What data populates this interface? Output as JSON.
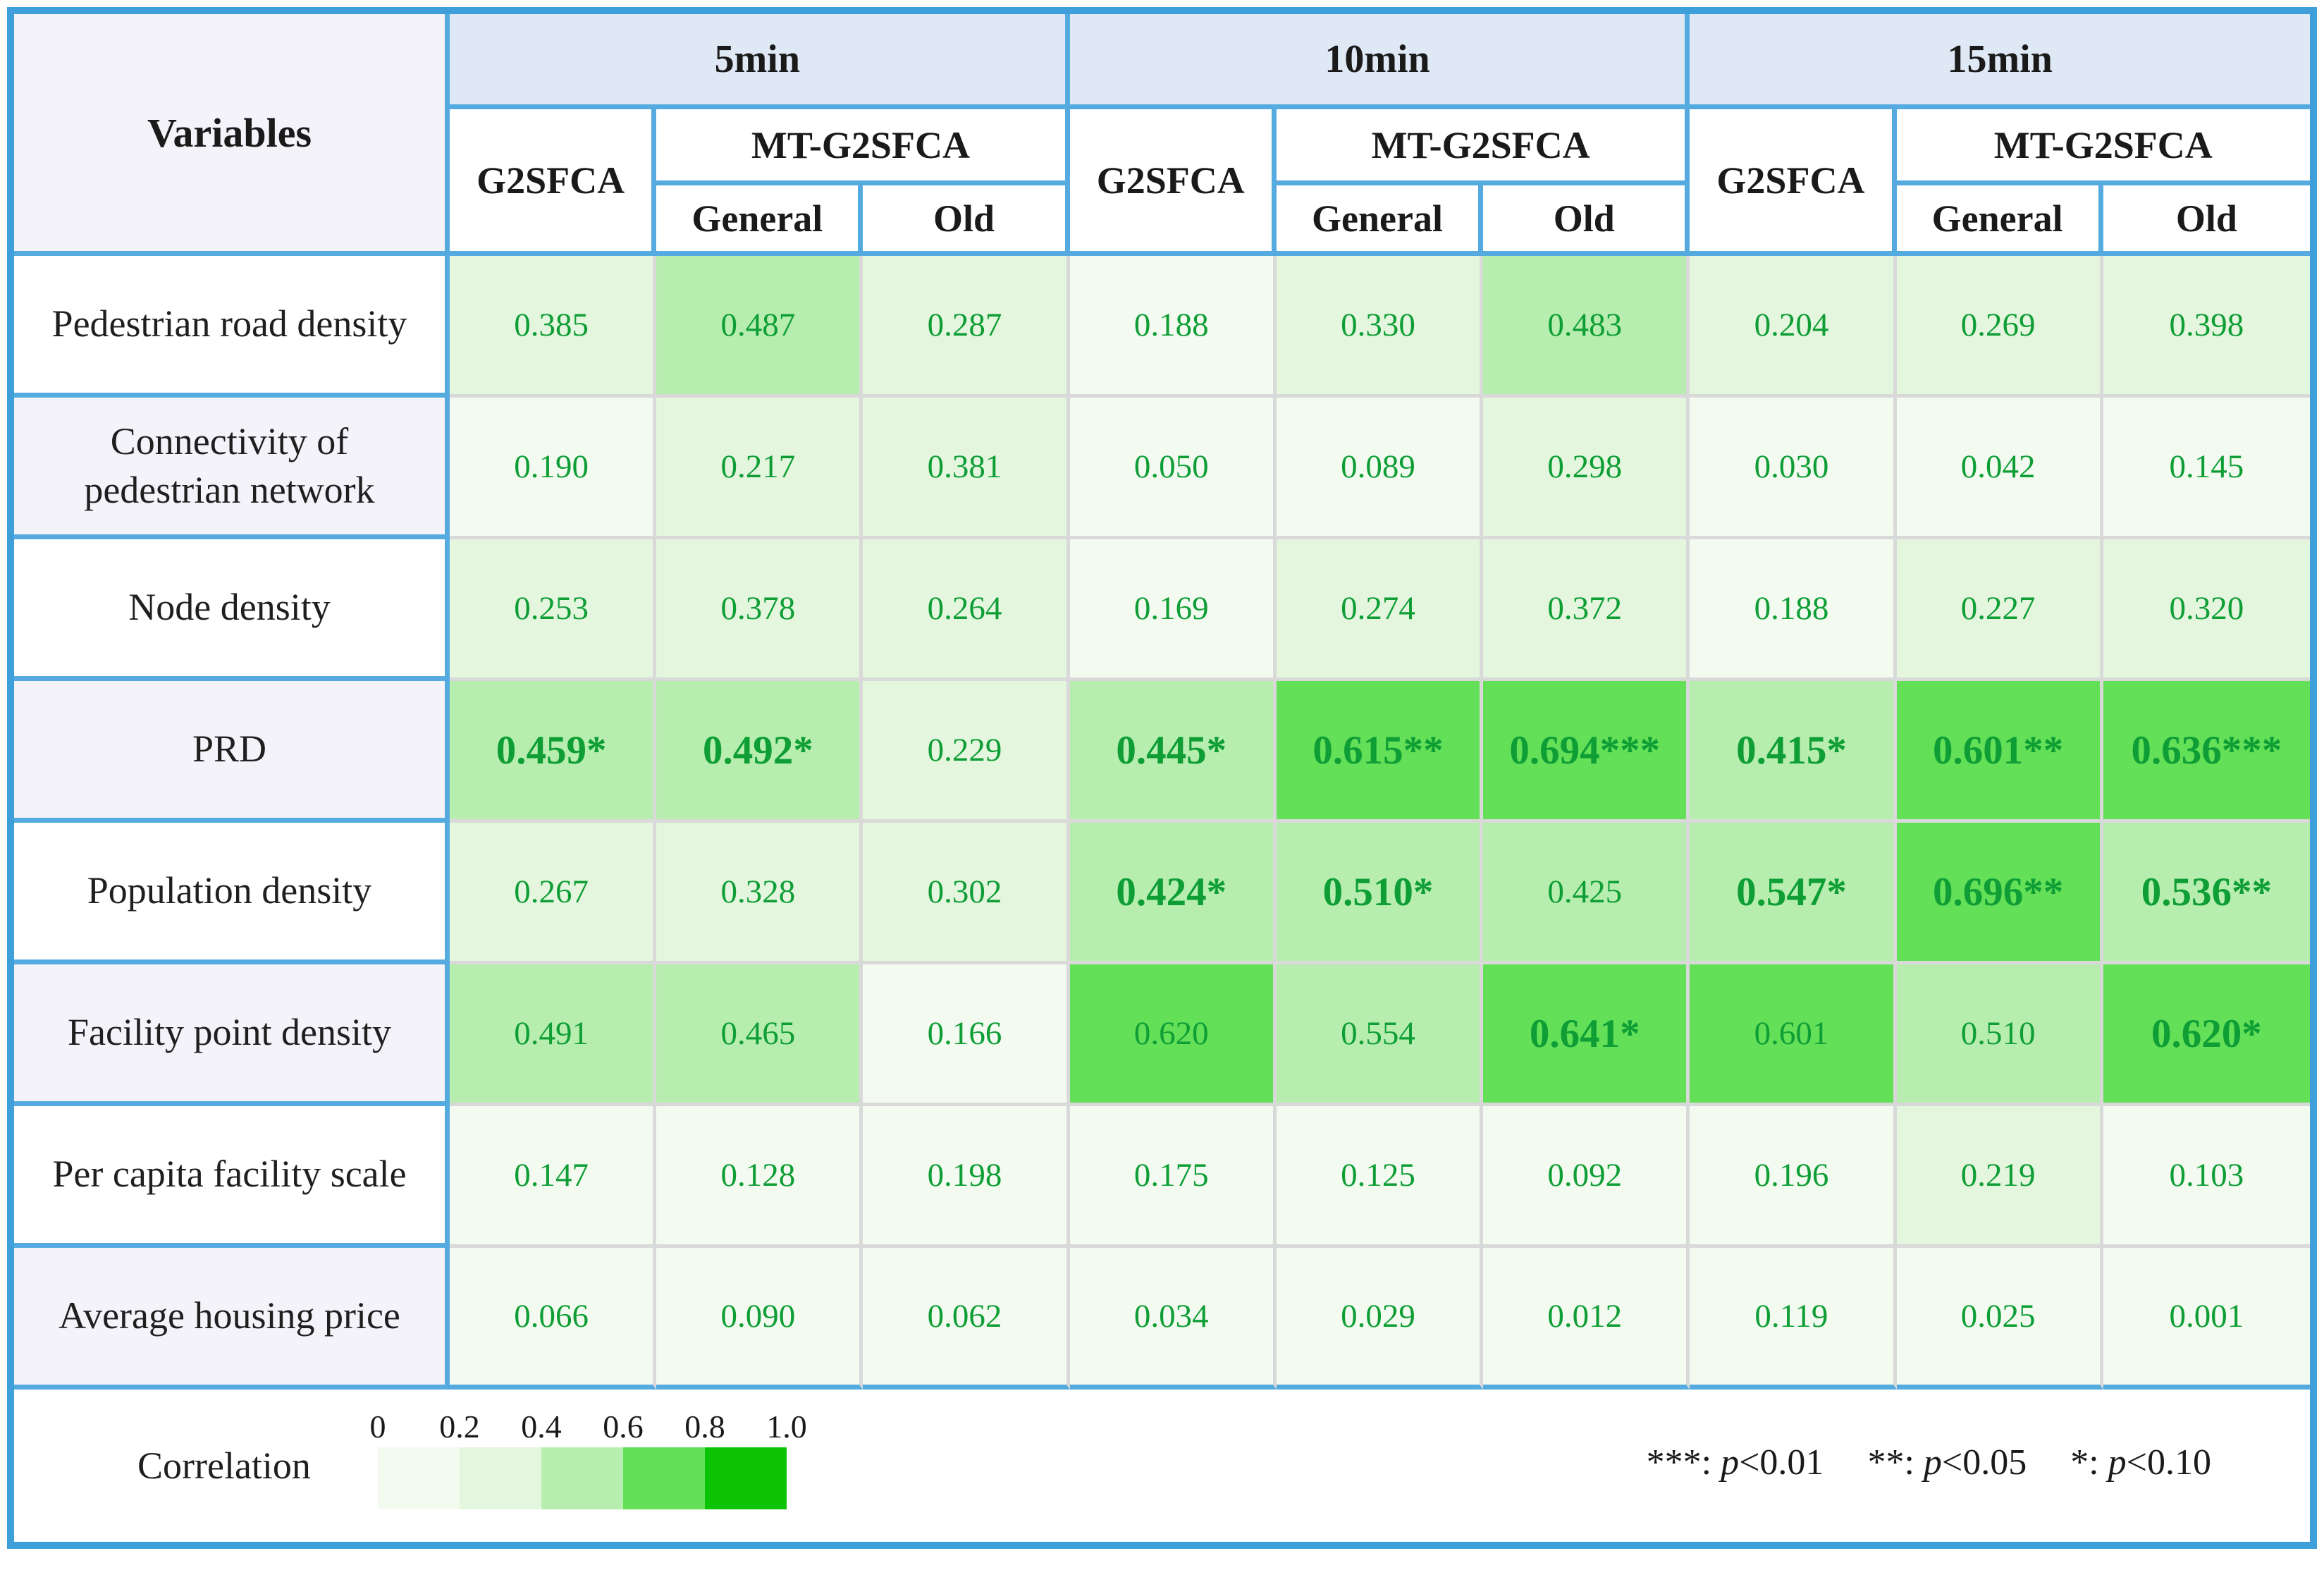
{
  "table": {
    "header": {
      "variables": "Variables",
      "groups": [
        "5min",
        "10min",
        "15min"
      ],
      "g2sfca": "G2SFCA",
      "mt": "MT-G2SFCA",
      "general": "General",
      "old": "Old"
    },
    "rows": [
      {
        "label": "Pedestrian road density",
        "values": [
          "0.385",
          "0.487",
          "0.287",
          "0.188",
          "0.330",
          "0.483",
          "0.204",
          "0.269",
          "0.398"
        ]
      },
      {
        "label": "Connectivity of pedestrian network",
        "values": [
          "0.190",
          "0.217",
          "0.381",
          "0.050",
          "0.089",
          "0.298",
          "0.030",
          "0.042",
          "0.145"
        ]
      },
      {
        "label": "Node density",
        "values": [
          "0.253",
          "0.378",
          "0.264",
          "0.169",
          "0.274",
          "0.372",
          "0.188",
          "0.227",
          "0.320"
        ]
      },
      {
        "label": "PRD",
        "values": [
          "0.459*",
          "0.492*",
          "0.229",
          "0.445*",
          "0.615**",
          "0.694***",
          "0.415*",
          "0.601**",
          "0.636***"
        ]
      },
      {
        "label": "Population density",
        "values": [
          "0.267",
          "0.328",
          "0.302",
          "0.424*",
          "0.510*",
          "0.425",
          "0.547*",
          "0.696**",
          "0.536**"
        ]
      },
      {
        "label": "Facility point density",
        "values": [
          "0.491",
          "0.465",
          "0.166",
          "0.620",
          "0.554",
          "0.641*",
          "0.601",
          "0.510",
          "0.620*"
        ]
      },
      {
        "label": "Per capita facility scale",
        "values": [
          "0.147",
          "0.128",
          "0.198",
          "0.175",
          "0.125",
          "0.092",
          "0.196",
          "0.219",
          "0.103"
        ]
      },
      {
        "label": "Average housing price",
        "values": [
          "0.066",
          "0.090",
          "0.062",
          "0.034",
          "0.029",
          "0.012",
          "0.119",
          "0.025",
          "0.001"
        ]
      }
    ]
  },
  "footer": {
    "legend_label": "Correlation",
    "legend_ticks": [
      "0",
      "0.2",
      "0.4",
      "0.6",
      "0.8",
      "1.0"
    ],
    "p_symbol": "p",
    "notes": [
      {
        "stars": "***: ",
        "rel": "<0.01"
      },
      {
        "stars": "**: ",
        "rel": "<0.05"
      },
      {
        "stars": "*: ",
        "rel": "<0.10"
      }
    ]
  },
  "colors": {
    "buckets": [
      "#f3fbf0",
      "#e4f6de",
      "#b7eeaf",
      "#63df58",
      "#0cc405"
    ],
    "blue_border": "#55abe0",
    "outer_border": "#3f9fda",
    "band_bg": "#dfe9f6",
    "lavender_bg": "#f4f3fa",
    "grid_line": "#d9d9d9",
    "value_green": "#0e9e35"
  },
  "chart_data": {
    "type": "heatmap",
    "title": "Correlation of variables with accessibility (G2SFCA vs MT-G2SFCA) at 5/10/15 min",
    "row_labels": [
      "Pedestrian road density",
      "Connectivity of pedestrian network",
      "Node density",
      "PRD",
      "Population density",
      "Facility point density",
      "Per capita facility scale",
      "Average housing price"
    ],
    "column_groups": [
      "5min",
      "10min",
      "15min"
    ],
    "columns": [
      "5min G2SFCA",
      "5min MT-G2SFCA General",
      "5min MT-G2SFCA Old",
      "10min G2SFCA",
      "10min MT-G2SFCA General",
      "10min MT-G2SFCA Old",
      "15min G2SFCA",
      "15min MT-G2SFCA General",
      "15min MT-G2SFCA Old"
    ],
    "values": [
      [
        0.385,
        0.487,
        0.287,
        0.188,
        0.33,
        0.483,
        0.204,
        0.269,
        0.398
      ],
      [
        0.19,
        0.217,
        0.381,
        0.05,
        0.089,
        0.298,
        0.03,
        0.042,
        0.145
      ],
      [
        0.253,
        0.378,
        0.264,
        0.169,
        0.274,
        0.372,
        0.188,
        0.227,
        0.32
      ],
      [
        0.459,
        0.492,
        0.229,
        0.445,
        0.615,
        0.694,
        0.415,
        0.601,
        0.636
      ],
      [
        0.267,
        0.328,
        0.302,
        0.424,
        0.51,
        0.425,
        0.547,
        0.696,
        0.536
      ],
      [
        0.491,
        0.465,
        0.166,
        0.62,
        0.554,
        0.641,
        0.601,
        0.51,
        0.62
      ],
      [
        0.147,
        0.128,
        0.198,
        0.175,
        0.125,
        0.092,
        0.196,
        0.219,
        0.103
      ],
      [
        0.066,
        0.09,
        0.062,
        0.034,
        0.029,
        0.012,
        0.119,
        0.025,
        0.001
      ]
    ],
    "significance": [
      [
        "",
        "",
        "",
        "",
        "",
        "",
        "",
        "",
        ""
      ],
      [
        "",
        "",
        "",
        "",
        "",
        "",
        "",
        "",
        ""
      ],
      [
        "",
        "",
        "",
        "",
        "",
        "",
        "",
        "",
        ""
      ],
      [
        "*",
        "*",
        "",
        "*",
        "**",
        "***",
        "*",
        "**",
        "***"
      ],
      [
        "",
        "",
        "",
        "*",
        "*",
        "",
        "*",
        "**",
        "**"
      ],
      [
        "",
        "",
        "",
        "",
        "",
        "*",
        "",
        "",
        "*"
      ],
      [
        "",
        "",
        "",
        "",
        "",
        "",
        "",
        "",
        ""
      ],
      [
        "",
        "",
        "",
        "",
        "",
        "",
        "",
        "",
        ""
      ]
    ],
    "color_scale": {
      "label": "Correlation",
      "range": [
        0,
        1.0
      ],
      "ticks": [
        0,
        0.2,
        0.4,
        0.6,
        0.8,
        1.0
      ],
      "colors": [
        "#f3fbf0",
        "#e4f6de",
        "#b7eeaf",
        "#63df58",
        "#0cc405"
      ]
    },
    "notes": [
      "***: p<0.01",
      "**: p<0.05",
      "*: p<0.10"
    ],
    "legend_position": "bottom-left",
    "grid": true
  }
}
